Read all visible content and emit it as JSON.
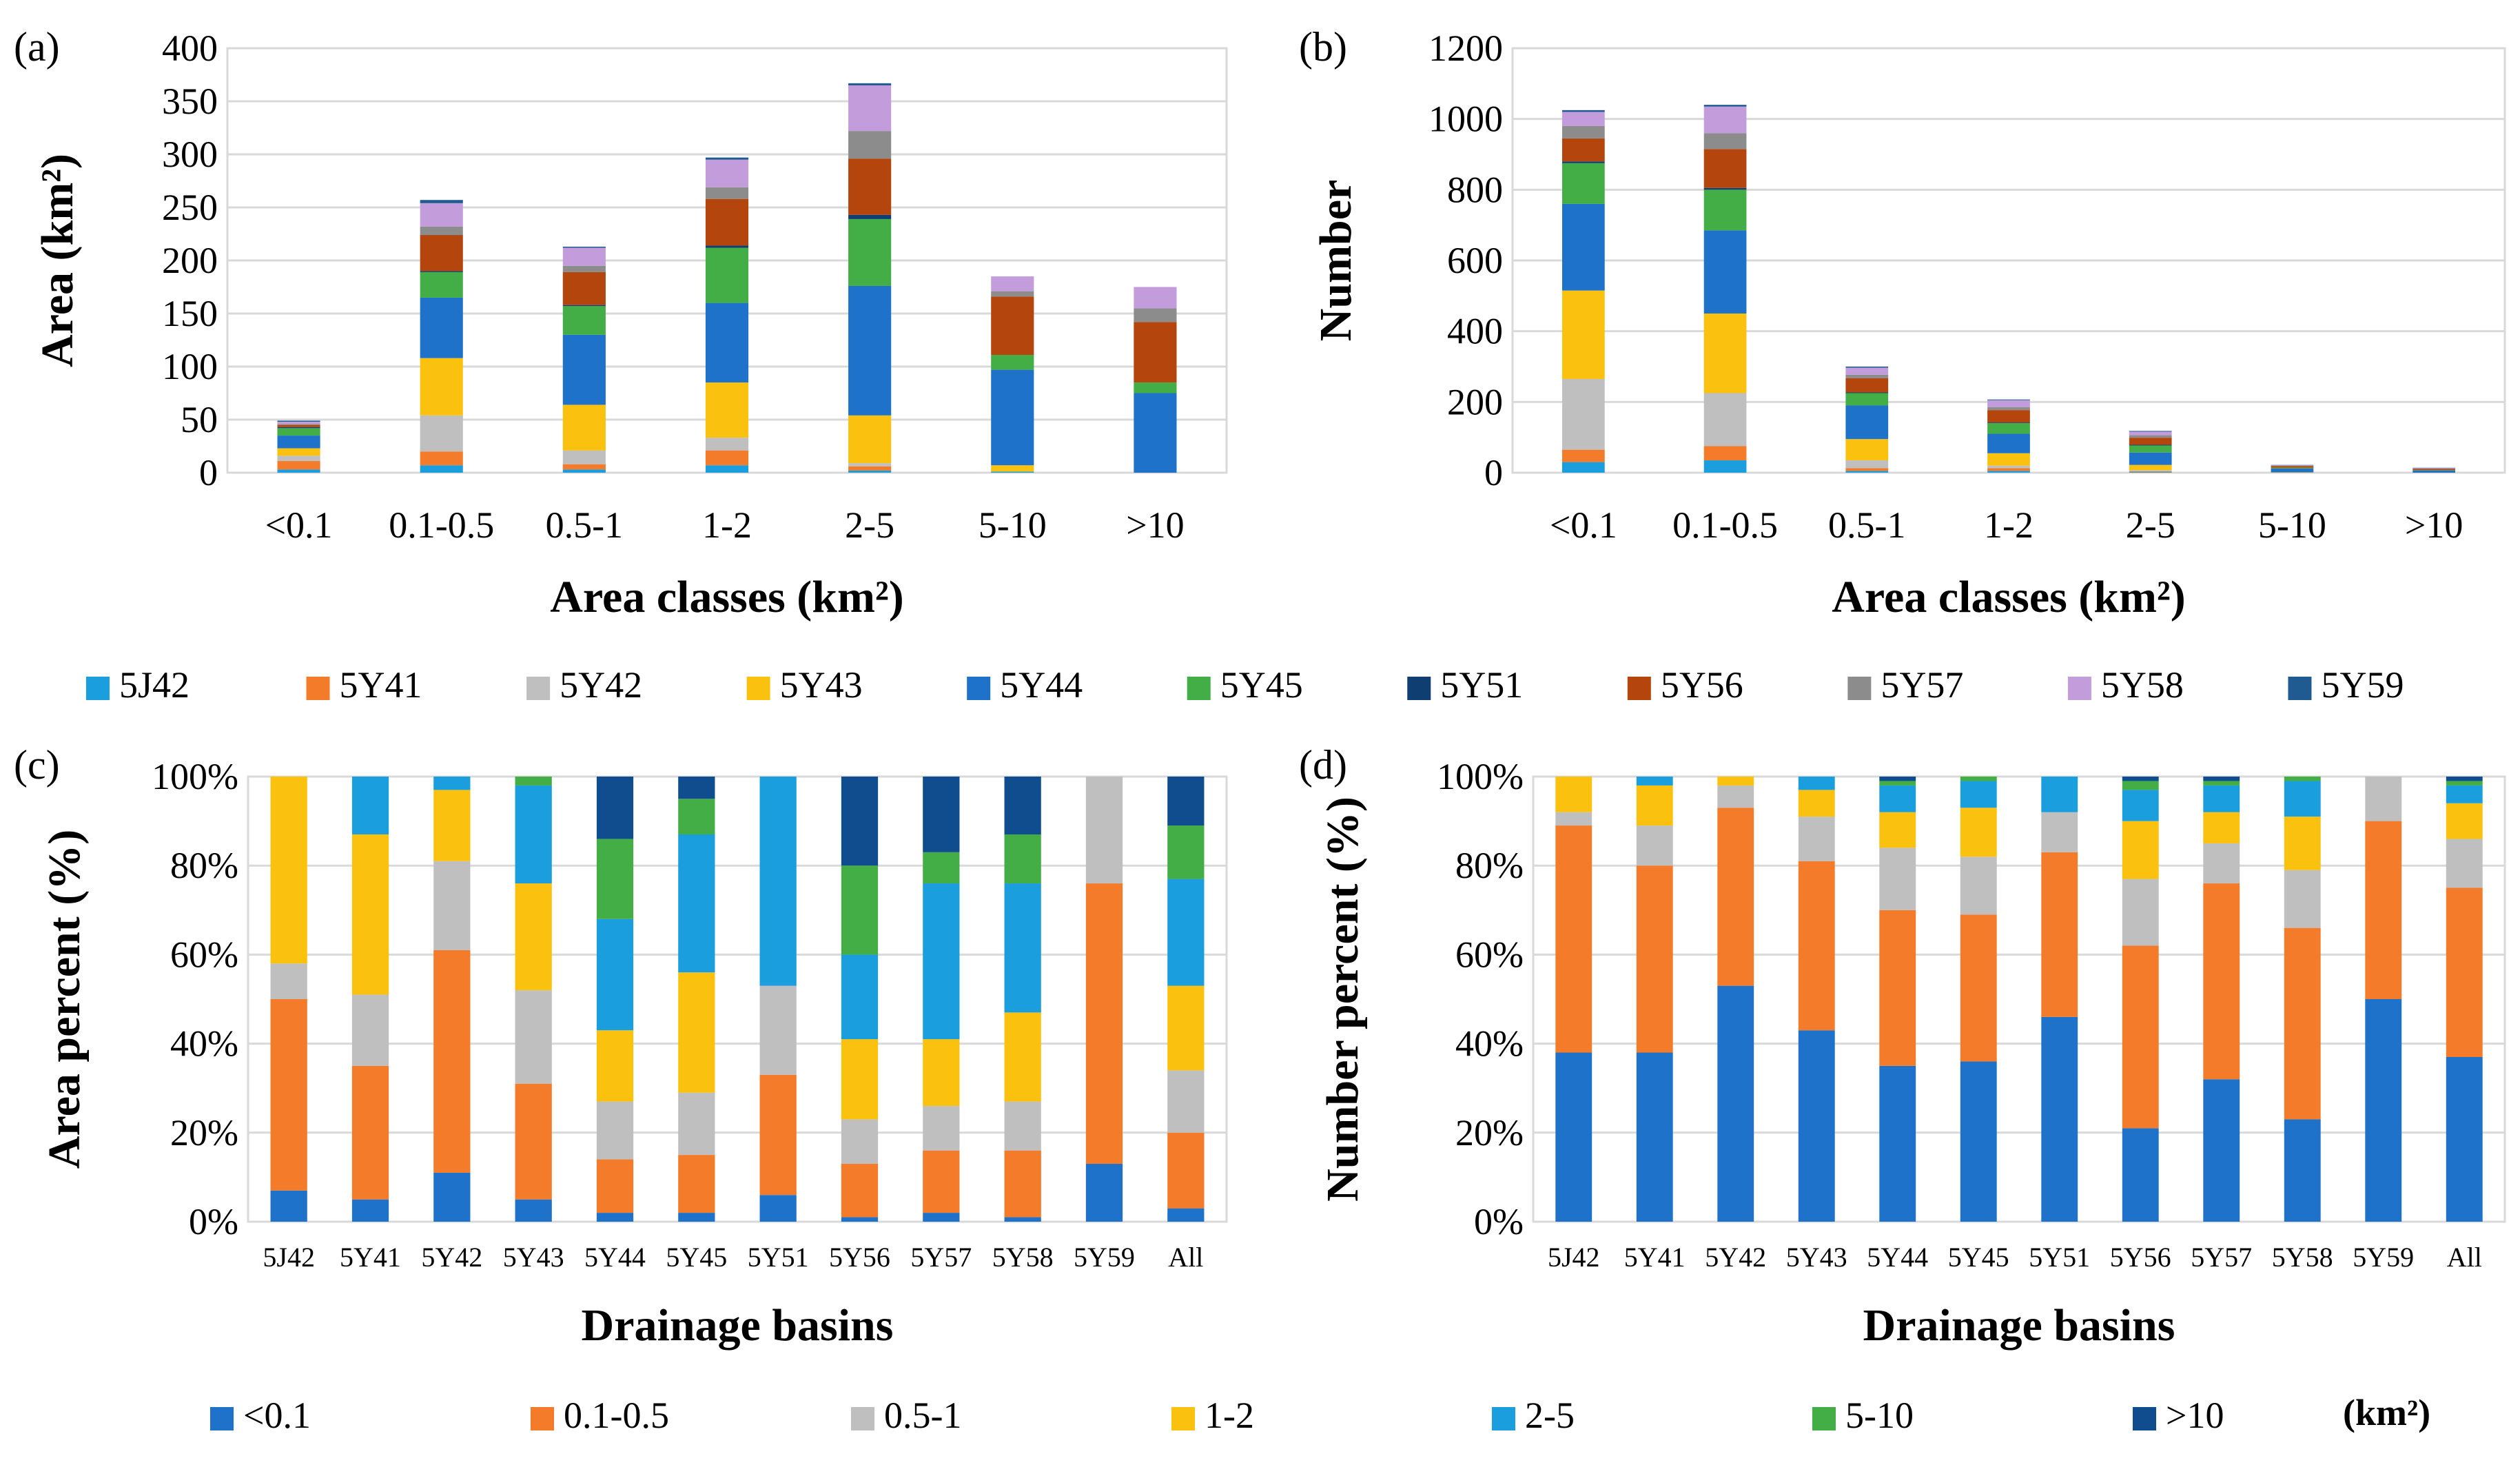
{
  "colors": {
    "5J42": "#1b9ede",
    "5Y41": "#f47b2a",
    "5Y42": "#bfbfbf",
    "5Y43": "#fbc10f",
    "5Y44": "#1f72c9",
    "5Y45": "#43ad46",
    "5Y51": "#0f3e73",
    "5Y56": "#b4450c",
    "5Y57": "#8c8c8c",
    "5Y58": "#c39ddb",
    "5Y59": "#1f5a91",
    "<0.1": "#1f72c9",
    "0.1-0.5": "#f47b2a",
    "0.5-1": "#bfbfbf",
    "1-2": "#fbc10f",
    "2-5": "#1b9ede",
    "5-10": "#43ad46",
    ">10": "#0f4d8f"
  },
  "basin_legend": {
    "items": [
      "5J42",
      "5Y41",
      "5Y42",
      "5Y43",
      "5Y44",
      "5Y45",
      "5Y51",
      "5Y56",
      "5Y57",
      "5Y58",
      "5Y59"
    ]
  },
  "class_legend": {
    "items": [
      "<0.1",
      "0.1-0.5",
      "0.5-1",
      "1-2",
      "2-5",
      "5-10",
      ">10"
    ],
    "unit": "(km²)"
  },
  "chart_data": [
    {
      "panel": "(a)",
      "type": "bar",
      "stacked": true,
      "xlabel": "Area classes (km²)",
      "ylabel": "Area (km²)",
      "ylim": [
        0,
        400
      ],
      "yticks": [
        0,
        50,
        100,
        150,
        200,
        250,
        300,
        350,
        400
      ],
      "ytick_labels": [
        "0",
        "50",
        "100",
        "150",
        "200",
        "250",
        "300",
        "350",
        "400"
      ],
      "categories": [
        "<0.1",
        "0.1-0.5",
        "0.5-1",
        "1-2",
        "2-5",
        "5-10",
        ">10"
      ],
      "series": [
        {
          "name": "5J42",
          "values": [
            3,
            7,
            3,
            7,
            2,
            1,
            0
          ]
        },
        {
          "name": "5Y41",
          "values": [
            8,
            13,
            5,
            14,
            4,
            0,
            0
          ]
        },
        {
          "name": "5Y42",
          "values": [
            5,
            34,
            13,
            12,
            3,
            0,
            0
          ]
        },
        {
          "name": "5Y43",
          "values": [
            7,
            54,
            43,
            52,
            45,
            6,
            0
          ]
        },
        {
          "name": "5Y44",
          "values": [
            12,
            57,
            66,
            75,
            122,
            90,
            75
          ]
        },
        {
          "name": "5Y45",
          "values": [
            7,
            24,
            27,
            52,
            63,
            14,
            10
          ]
        },
        {
          "name": "5Y51",
          "values": [
            1,
            1,
            1,
            2,
            4,
            0,
            0
          ]
        },
        {
          "name": "5Y56",
          "values": [
            2,
            34,
            31,
            44,
            53,
            55,
            57
          ]
        },
        {
          "name": "5Y57",
          "values": [
            1,
            8,
            6,
            11,
            26,
            5,
            13
          ]
        },
        {
          "name": "5Y58",
          "values": [
            2,
            22,
            17,
            26,
            43,
            14,
            20
          ]
        },
        {
          "name": "5Y59",
          "values": [
            1,
            3,
            1,
            2,
            2,
            0,
            0
          ]
        }
      ]
    },
    {
      "panel": "(b)",
      "type": "bar",
      "stacked": true,
      "xlabel": "Area classes (km²)",
      "ylabel": "Number",
      "ylim": [
        0,
        1200
      ],
      "yticks": [
        0,
        200,
        400,
        600,
        800,
        1000,
        1200
      ],
      "ytick_labels": [
        "0",
        "200",
        "400",
        "600",
        "800",
        "1000",
        "1200"
      ],
      "categories": [
        "<0.1",
        "0.1-0.5",
        "0.5-1",
        "1-2",
        "2-5",
        "5-10",
        ">10"
      ],
      "series": [
        {
          "name": "5J42",
          "values": [
            30,
            35,
            5,
            5,
            2,
            0,
            0
          ]
        },
        {
          "name": "5Y41",
          "values": [
            35,
            40,
            8,
            8,
            2,
            0,
            0
          ]
        },
        {
          "name": "5Y42",
          "values": [
            200,
            150,
            22,
            7,
            3,
            0,
            0
          ]
        },
        {
          "name": "5Y43",
          "values": [
            250,
            225,
            60,
            35,
            15,
            1,
            0
          ]
        },
        {
          "name": "5Y44",
          "values": [
            245,
            235,
            95,
            55,
            35,
            11,
            6
          ]
        },
        {
          "name": "5Y45",
          "values": [
            115,
            115,
            35,
            30,
            20,
            2,
            1
          ]
        },
        {
          "name": "5Y51",
          "values": [
            5,
            5,
            2,
            2,
            2,
            0,
            0
          ]
        },
        {
          "name": "5Y56",
          "values": [
            65,
            110,
            40,
            35,
            20,
            5,
            4
          ]
        },
        {
          "name": "5Y57",
          "values": [
            35,
            45,
            10,
            8,
            7,
            1,
            1
          ]
        },
        {
          "name": "5Y58",
          "values": [
            40,
            75,
            20,
            20,
            10,
            1,
            1
          ]
        },
        {
          "name": "5Y59",
          "values": [
            5,
            5,
            3,
            2,
            2,
            1,
            1
          ]
        }
      ]
    },
    {
      "panel": "(c)",
      "type": "bar",
      "stacked": true,
      "xlabel": "Drainage basins",
      "ylabel": "Area percent (%)",
      "ylim": [
        0,
        100
      ],
      "yticks": [
        0,
        20,
        40,
        60,
        80,
        100
      ],
      "ytick_labels": [
        "0%",
        "20%",
        "40%",
        "60%",
        "80%",
        "100%"
      ],
      "categories": [
        "5J42",
        "5Y41",
        "5Y42",
        "5Y43",
        "5Y44",
        "5Y45",
        "5Y51",
        "5Y56",
        "5Y57",
        "5Y58",
        "5Y59",
        "All"
      ],
      "series": [
        {
          "name": "<0.1",
          "values": [
            7,
            5,
            11,
            5,
            2,
            2,
            6,
            1,
            2,
            1,
            13,
            3
          ]
        },
        {
          "name": "0.1-0.5",
          "values": [
            43,
            30,
            50,
            26,
            12,
            13,
            27,
            12,
            14,
            15,
            63,
            17
          ]
        },
        {
          "name": "0.5-1",
          "values": [
            8,
            16,
            20,
            21,
            13,
            14,
            20,
            10,
            10,
            11,
            24,
            14
          ]
        },
        {
          "name": "1-2",
          "values": [
            42,
            36,
            16,
            24,
            16,
            27,
            0,
            18,
            15,
            20,
            0,
            19
          ]
        },
        {
          "name": "2-5",
          "values": [
            0,
            13,
            3,
            22,
            25,
            31,
            47,
            19,
            35,
            29,
            0,
            24
          ]
        },
        {
          "name": "5-10",
          "values": [
            0,
            0,
            0,
            2,
            18,
            8,
            0,
            20,
            7,
            11,
            0,
            12
          ]
        },
        {
          "name": ">10",
          "values": [
            0,
            0,
            0,
            0,
            14,
            5,
            0,
            20,
            17,
            13,
            0,
            11
          ]
        }
      ]
    },
    {
      "panel": "(d)",
      "type": "bar",
      "stacked": true,
      "xlabel": "Drainage basins",
      "ylabel": "Number percent (%)",
      "ylim": [
        0,
        100
      ],
      "yticks": [
        0,
        20,
        40,
        60,
        80,
        100
      ],
      "ytick_labels": [
        "0%",
        "20%",
        "40%",
        "60%",
        "80%",
        "100%"
      ],
      "categories": [
        "5J42",
        "5Y41",
        "5Y42",
        "5Y43",
        "5Y44",
        "5Y45",
        "5Y51",
        "5Y56",
        "5Y57",
        "5Y58",
        "5Y59",
        "All"
      ],
      "series": [
        {
          "name": "<0.1",
          "values": [
            38,
            38,
            53,
            43,
            35,
            36,
            46,
            21,
            32,
            23,
            50,
            37
          ]
        },
        {
          "name": "0.1-0.5",
          "values": [
            51,
            42,
            40,
            38,
            35,
            33,
            37,
            41,
            44,
            43,
            40,
            38
          ]
        },
        {
          "name": "0.5-1",
          "values": [
            3,
            9,
            5,
            10,
            14,
            13,
            9,
            15,
            9,
            13,
            10,
            11
          ]
        },
        {
          "name": "1-2",
          "values": [
            8,
            9,
            2,
            6,
            8,
            11,
            0,
            13,
            7,
            12,
            0,
            8
          ]
        },
        {
          "name": "2-5",
          "values": [
            0,
            2,
            0,
            3,
            6,
            6,
            8,
            7,
            6,
            8,
            0,
            4
          ]
        },
        {
          "name": "5-10",
          "values": [
            0,
            0,
            0,
            0,
            1,
            1,
            0,
            2,
            1,
            1,
            0,
            1
          ]
        },
        {
          "name": ">10",
          "values": [
            0,
            0,
            0,
            0,
            1,
            0,
            0,
            1,
            1,
            0,
            0,
            1
          ]
        }
      ]
    }
  ]
}
